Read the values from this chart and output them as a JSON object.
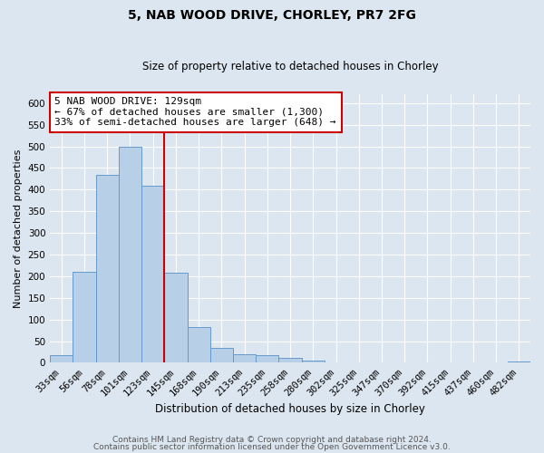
{
  "title": "5, NAB WOOD DRIVE, CHORLEY, PR7 2FG",
  "subtitle": "Size of property relative to detached houses in Chorley",
  "xlabel": "Distribution of detached houses by size in Chorley",
  "ylabel": "Number of detached properties",
  "bar_labels": [
    "33sqm",
    "56sqm",
    "78sqm",
    "101sqm",
    "123sqm",
    "145sqm",
    "168sqm",
    "190sqm",
    "213sqm",
    "235sqm",
    "258sqm",
    "280sqm",
    "302sqm",
    "325sqm",
    "347sqm",
    "370sqm",
    "392sqm",
    "415sqm",
    "437sqm",
    "460sqm",
    "482sqm"
  ],
  "bar_values": [
    18,
    210,
    435,
    500,
    410,
    208,
    83,
    35,
    20,
    17,
    12,
    5,
    0,
    0,
    0,
    0,
    0,
    0,
    0,
    0,
    3
  ],
  "bar_color": "#b8cfe8",
  "bar_edgecolor": "#6699cc",
  "vline_x": 4.5,
  "vline_color": "#cc0000",
  "annotation_text": "5 NAB WOOD DRIVE: 129sqm\n← 67% of detached houses are smaller (1,300)\n33% of semi-detached houses are larger (648) →",
  "annotation_box_facecolor": "#ffffff",
  "annotation_box_edgecolor": "#cc0000",
  "ylim": [
    0,
    620
  ],
  "yticks": [
    0,
    50,
    100,
    150,
    200,
    250,
    300,
    350,
    400,
    450,
    500,
    550,
    600
  ],
  "footer1": "Contains HM Land Registry data © Crown copyright and database right 2024.",
  "footer2": "Contains public sector information licensed under the Open Government Licence v3.0.",
  "fig_facecolor": "#dce6f0",
  "plot_facecolor": "#dce6f0",
  "grid_color": "#ffffff",
  "title_fontsize": 10,
  "subtitle_fontsize": 8.5,
  "xlabel_fontsize": 8.5,
  "ylabel_fontsize": 8,
  "tick_fontsize": 7.5,
  "annot_fontsize": 8,
  "footer_fontsize": 6.5
}
